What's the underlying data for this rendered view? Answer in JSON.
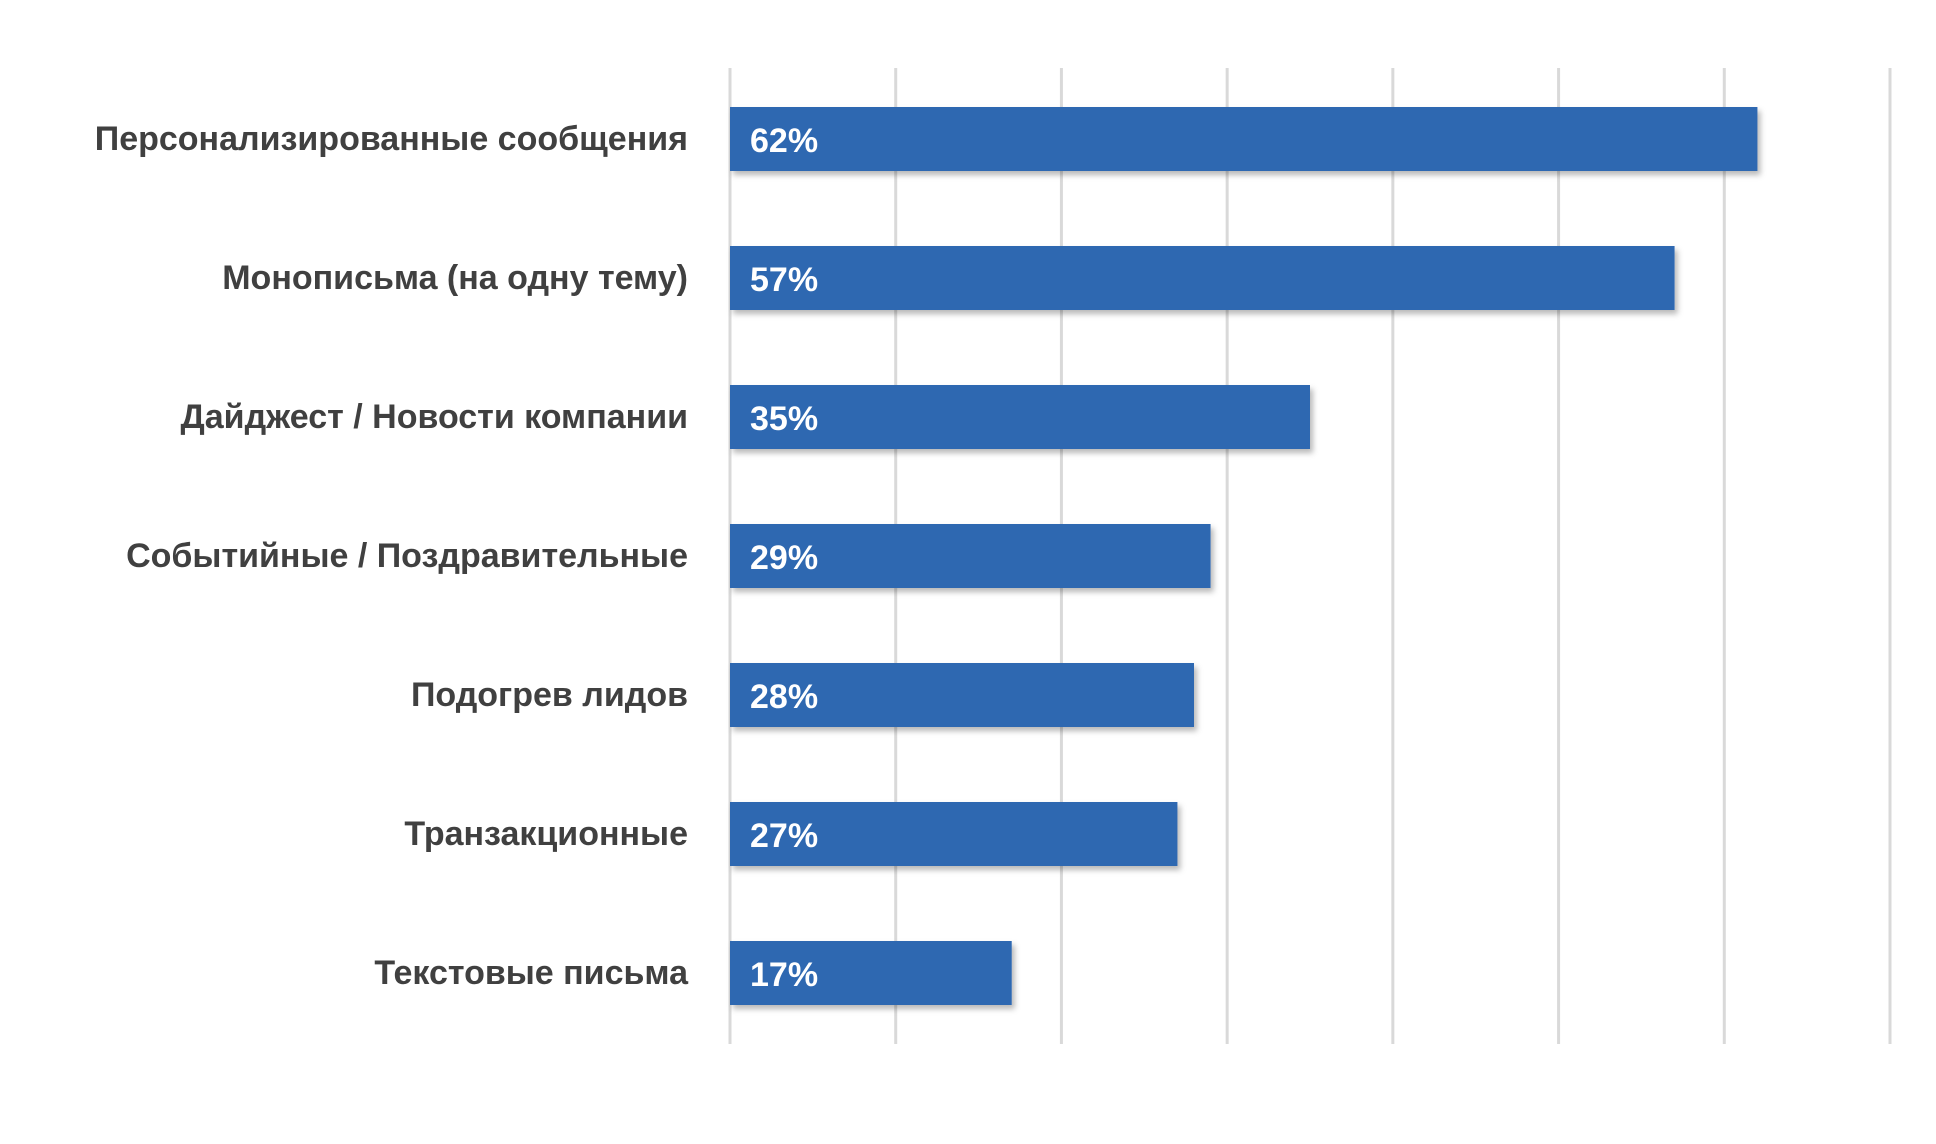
{
  "chart_data": {
    "type": "bar",
    "orientation": "horizontal",
    "categories": [
      "Персонализированные сообщения",
      "Монописьма (на одну тему)",
      "Дайджест / Новости компании",
      "Событийные / Поздравительные",
      "Подогрев лидов",
      "Транзакционные",
      "Текстовые письма"
    ],
    "values": [
      62,
      57,
      35,
      29,
      28,
      27,
      17
    ],
    "value_labels": [
      "62%",
      "57%",
      "35%",
      "29%",
      "28%",
      "27%",
      "17%"
    ],
    "xlim": [
      0,
      70
    ],
    "grid": true,
    "legend": "none",
    "bar_color": "#2e67b1",
    "title": "",
    "xlabel": "",
    "ylabel": ""
  }
}
